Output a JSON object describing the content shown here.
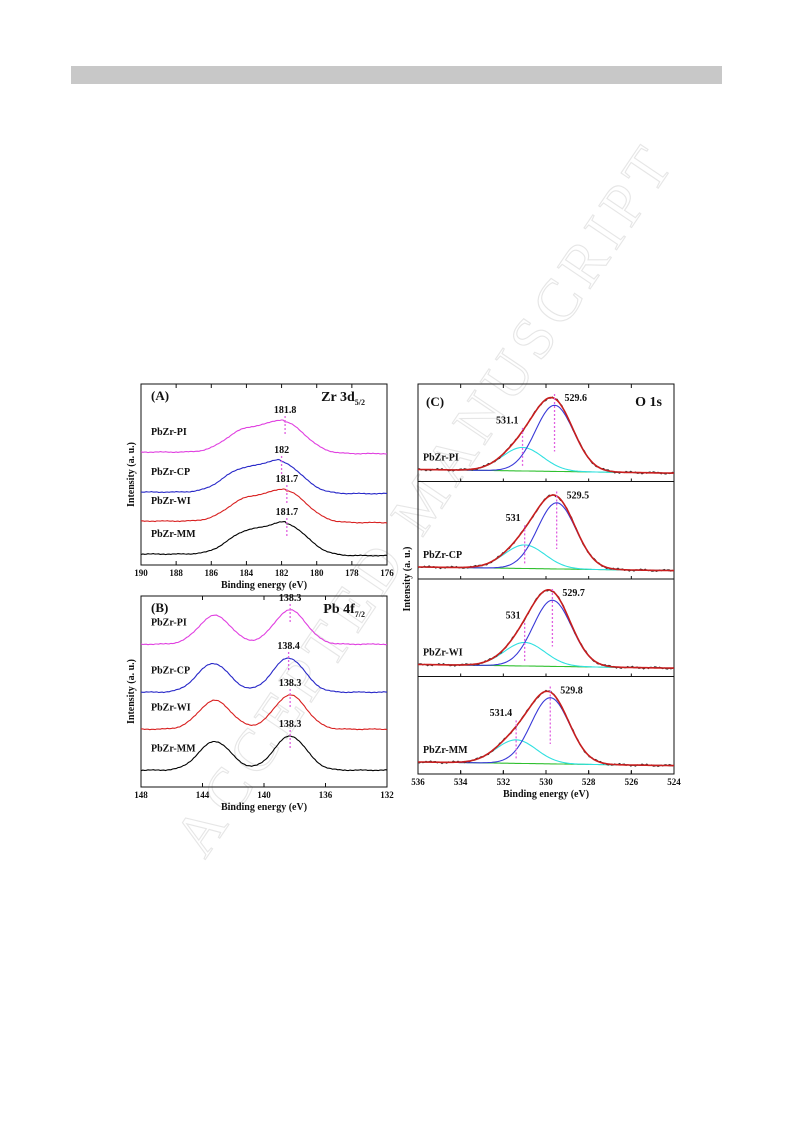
{
  "chart_data": [
    {
      "panel": "(A)",
      "type": "line",
      "region": {
        "main": "Zr 3d",
        "sub": "5/2"
      },
      "xlabel": "Binding energy (eV)",
      "ylabel": "Intensity (a. u.)",
      "xlim": [
        190,
        176
      ],
      "xticks": [
        190,
        188,
        186,
        184,
        182,
        180,
        178,
        176
      ],
      "peak_form": "zr",
      "colors": {
        "PbZr-PI": "#e040e0",
        "PbZr-CP": "#2828c8",
        "PbZr-WI": "#d82020",
        "PbZr-MM": "#000000"
      },
      "series": [
        {
          "name": "PbZr-PI",
          "peak_label": "181.8",
          "peak": 181.8
        },
        {
          "name": "PbZr-CP",
          "peak_label": "182",
          "peak": 182.0
        },
        {
          "name": "PbZr-WI",
          "peak_label": "181.7",
          "peak": 181.7
        },
        {
          "name": "PbZr-MM",
          "peak_label": "181.7",
          "peak": 181.7
        }
      ]
    },
    {
      "panel": "(B)",
      "type": "line",
      "region": {
        "main": "Pb 4f",
        "sub": "7/2"
      },
      "xlabel": "Binding energy (eV)",
      "ylabel": "Intensity (a. u.)",
      "xlim": [
        148,
        132
      ],
      "xticks": [
        148,
        144,
        140,
        136,
        132
      ],
      "peak_form": "pb",
      "colors": {
        "PbZr-PI": "#e040e0",
        "PbZr-CP": "#2828c8",
        "PbZr-WI": "#d82020",
        "PbZr-MM": "#000000"
      },
      "series": [
        {
          "name": "PbZr-PI",
          "peak_label": "138.3",
          "peak": 138.3
        },
        {
          "name": "PbZr-CP",
          "peak_label": "138.4",
          "peak": 138.4
        },
        {
          "name": "PbZr-WI",
          "peak_label": "138.3",
          "peak": 138.3
        },
        {
          "name": "PbZr-MM",
          "peak_label": "138.3",
          "peak": 138.3
        }
      ]
    },
    {
      "panel": "(C)",
      "type": "line",
      "region": {
        "main": "O 1s"
      },
      "xlabel": "Binding energy (eV)",
      "ylabel": "Intensity (a. u.)",
      "xlim": [
        536,
        524
      ],
      "xticks": [
        536,
        534,
        532,
        530,
        528,
        526,
        524
      ],
      "colors": {
        "raw": "#333333",
        "envelope": "#c81e1e",
        "lattice_O": "#3a3ad8",
        "surface_O": "#30e0e0",
        "background": "#30c030"
      },
      "subpanels": [
        {
          "name": "PbZr-PI",
          "lattice_peak_label": "529.6",
          "lattice_peak": 529.6,
          "surface_peak_label": "531.1",
          "surface_peak": 531.1
        },
        {
          "name": "PbZr-CP",
          "lattice_peak_label": "529.5",
          "lattice_peak": 529.5,
          "surface_peak_label": "531",
          "surface_peak": 531.0
        },
        {
          "name": "PbZr-WI",
          "lattice_peak_label": "529.7",
          "lattice_peak": 529.7,
          "surface_peak_label": "531",
          "surface_peak": 531.0
        },
        {
          "name": "PbZr-MM",
          "lattice_peak_label": "529.8",
          "lattice_peak": 529.8,
          "surface_peak_label": "531.4",
          "surface_peak": 531.4
        }
      ]
    }
  ],
  "watermark": {
    "text": "ACCEPTED MANUSCRIPT"
  }
}
